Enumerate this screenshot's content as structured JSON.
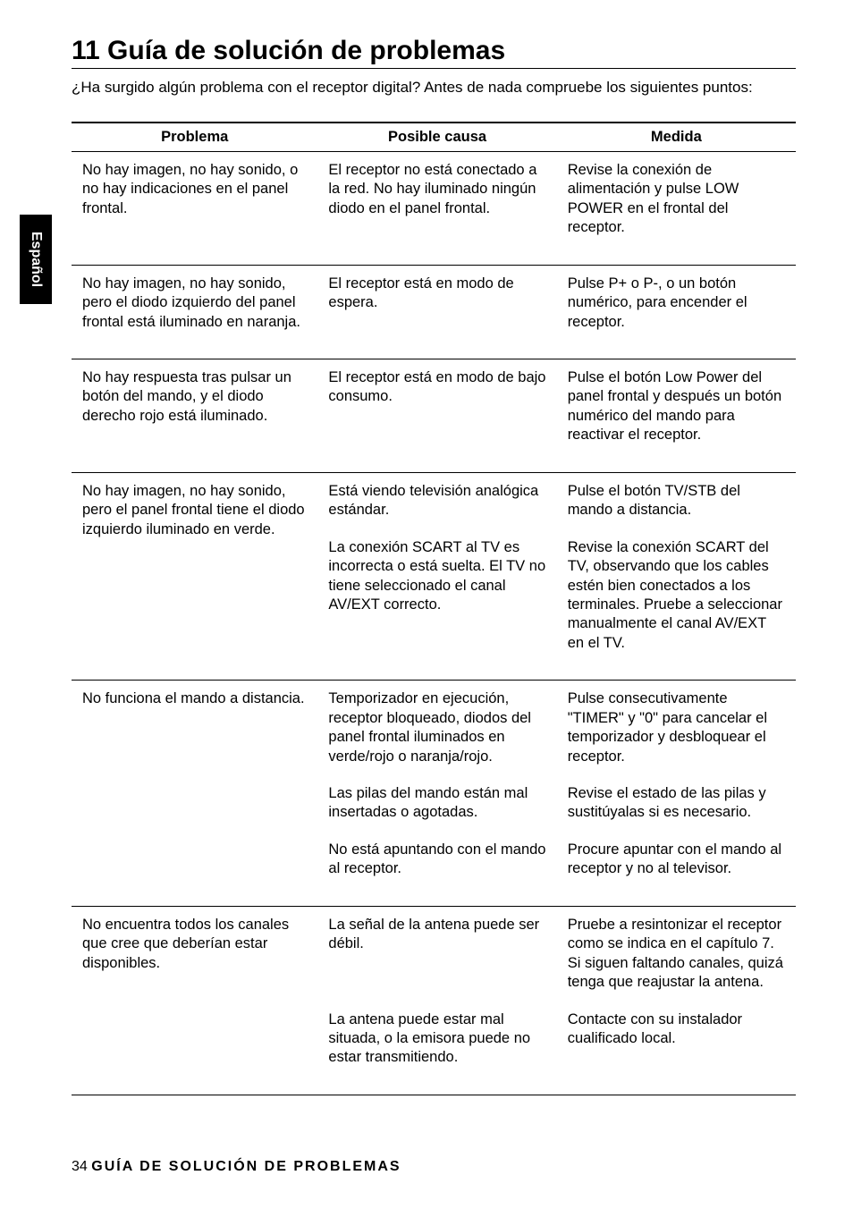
{
  "sideTab": "Español",
  "title": "11  Guía de solución de problemas",
  "intro": "¿Ha surgido algún problema con el receptor digital? Antes de nada compruebe los siguientes puntos:",
  "headers": {
    "problema": "Problema",
    "causa": "Posible causa",
    "medida": "Medida"
  },
  "rows": [
    {
      "p": "No hay imagen, no hay sonido, o no hay indicaciones en el panel frontal.",
      "c": "El receptor no está conectado a la red. No hay iluminado ningún diodo en el panel frontal.",
      "m": "Revise la conexión de alimentación y pulse LOW POWER  en el frontal del receptor."
    },
    {
      "p": "No hay imagen, no hay sonido, pero el diodo izquierdo del panel frontal está iluminado en naranja.",
      "c": "El receptor está en modo de espera.",
      "m": "Pulse P+ o P-, o un botón numérico, para encender el receptor."
    },
    {
      "p": "No hay respuesta tras pulsar un botón del mando, y el diodo derecho rojo está iluminado.",
      "c": "El receptor está en modo de bajo consumo.",
      "m": "Pulse el botón Low Power del panel frontal y después un botón numérico del mando para reactivar el receptor."
    },
    {
      "p": "No hay imagen, no hay sonido, pero el panel frontal tiene el diodo izquierdo iluminado en verde.",
      "c": "Está viendo televisión analógica estándar.",
      "m": "Pulse el botón TV/STB del mando a distancia."
    },
    {
      "p": "",
      "c": "La conexión SCART al TV es incorrecta o está suelta.\nEl TV no tiene seleccionado el canal AV/EXT correcto.",
      "m": "Revise la conexión SCART del TV, observando que los cables estén bien conectados a los terminales. Pruebe a seleccionar manualmente el canal AV/EXT en el TV."
    },
    {
      "p": "No funciona el mando a distancia.",
      "c": "Temporizador en ejecución, receptor bloqueado, diodos del panel frontal iluminados en verde/rojo o naranja/rojo.",
      "m": "Pulse consecutivamente \"TIMER\" y \"0\" para cancelar el temporizador y desbloquear el receptor."
    },
    {
      "p": "",
      "c": "Las pilas del mando están mal insertadas o agotadas.",
      "m": "Revise el estado de las pilas y sustitúyalas si es necesario."
    },
    {
      "p": "",
      "c": "No está apuntando con el mando al receptor.",
      "m": "Procure apuntar con el mando al receptor y no al televisor."
    },
    {
      "p": "No encuentra todos los canales que cree que deberían estar disponibles.",
      "c": "La señal de la antena puede ser débil.",
      "m": "Pruebe a resintonizar el receptor como se indica en el capítulo 7. Si siguen faltando canales, quizá tenga que reajustar la antena."
    },
    {
      "p": "",
      "c": "La antena puede estar mal situada, o la emisora puede no estar transmitiendo.",
      "m": "Contacte con su instalador cualificado local."
    }
  ],
  "footer": {
    "pageNum": "34",
    "title": "GUÍA DE SOLUCIÓN DE PROBLEMAS"
  },
  "style": {
    "page_bg": "#ffffff",
    "text_color": "#000000",
    "tab_bg": "#000000",
    "tab_text": "#ffffff",
    "title_fontsize": 30,
    "body_fontsize": 16.5,
    "footer_fontsize": 16,
    "rule_color": "#000000"
  }
}
